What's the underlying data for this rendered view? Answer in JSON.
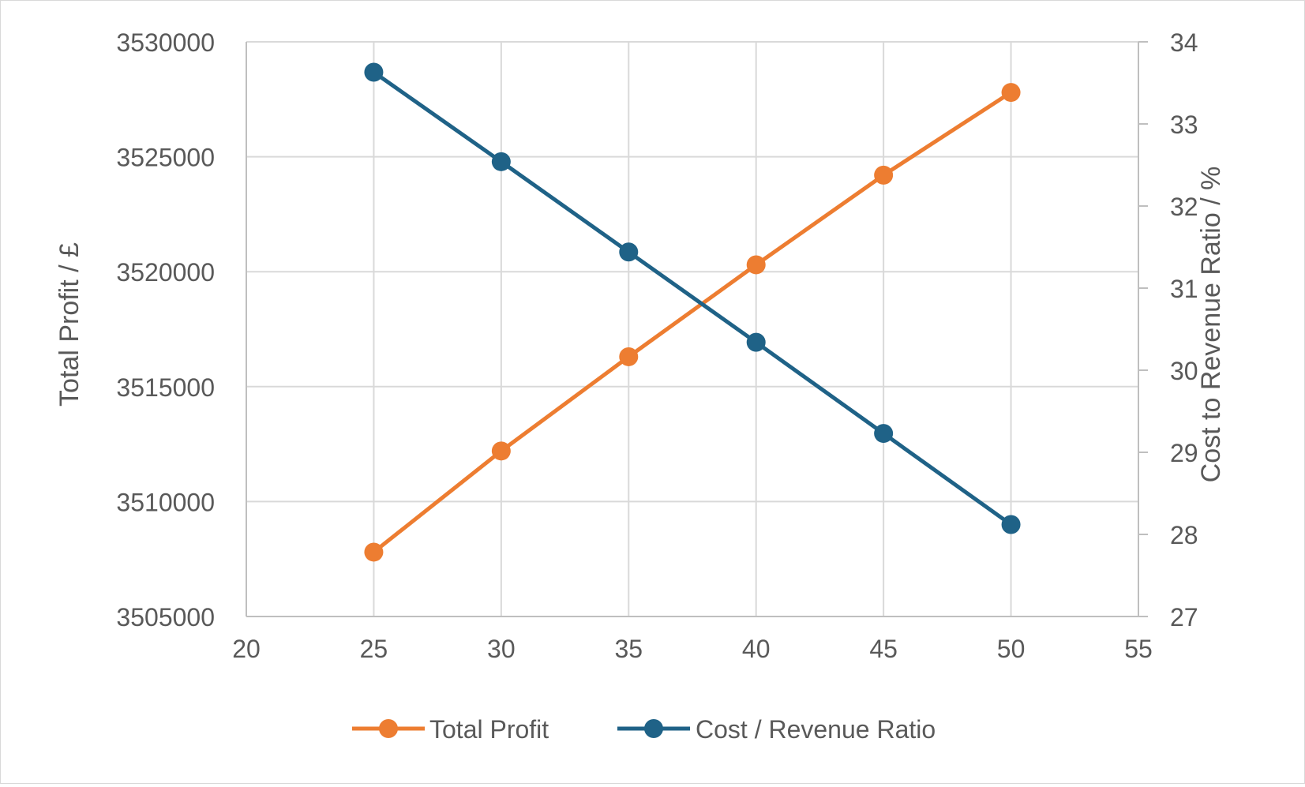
{
  "chart_data": {
    "type": "line",
    "x": [
      25,
      30,
      35,
      40,
      45,
      50
    ],
    "xlim": [
      20,
      55
    ],
    "x_ticks": [
      "20",
      "25",
      "30",
      "35",
      "40",
      "45",
      "50",
      "55"
    ],
    "ylabel": "Total Profit / £",
    "ylim": [
      3505000,
      3530000
    ],
    "y_ticks": [
      "3530000",
      "3525000",
      "3520000",
      "3515000",
      "3510000",
      "3505000"
    ],
    "y2label": "Cost to Revenue Ratio / %",
    "y2lim": [
      27,
      34
    ],
    "y2_ticks": [
      "34",
      "33",
      "32",
      "31",
      "30",
      "29",
      "28",
      "27"
    ],
    "grid": true,
    "legend_position": "bottom",
    "series": [
      {
        "name": "Total Profit",
        "axis": "left",
        "color": "#ED7D31",
        "values": [
          3507800,
          3512200,
          3516300,
          3520300,
          3524200,
          3527800
        ]
      },
      {
        "name": "Cost / Revenue Ratio",
        "axis": "right",
        "color": "#1F6287",
        "values": [
          33.63,
          32.54,
          31.44,
          30.34,
          29.23,
          28.12
        ]
      }
    ]
  }
}
